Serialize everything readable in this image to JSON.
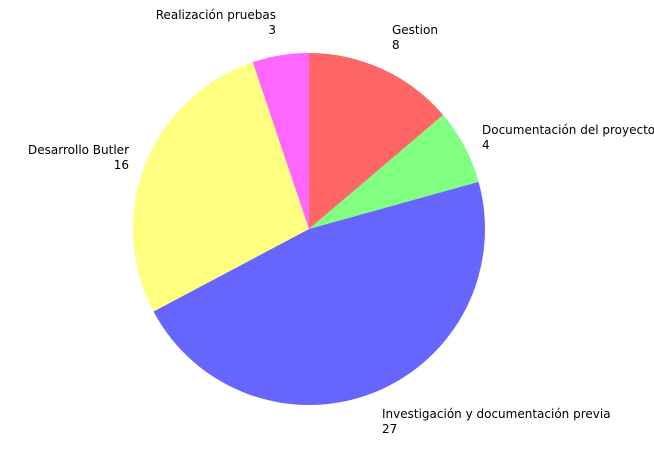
{
  "chart_data": {
    "type": "pie",
    "title": "",
    "start_angle_deg": 0,
    "direction": "clockwise",
    "slices": [
      {
        "name": "Gestion",
        "value": 8,
        "color": "#FF6666"
      },
      {
        "name": "Documentación del proyecto",
        "value": 4,
        "color": "#80FF80"
      },
      {
        "name": "Investigación y documentación previa",
        "value": 27,
        "color": "#6666FF"
      },
      {
        "name": "Desarrollo Butler",
        "value": 16,
        "color": "#FFFF80"
      },
      {
        "name": "Realización pruebas",
        "value": 3,
        "color": "#FF66FF"
      }
    ]
  }
}
